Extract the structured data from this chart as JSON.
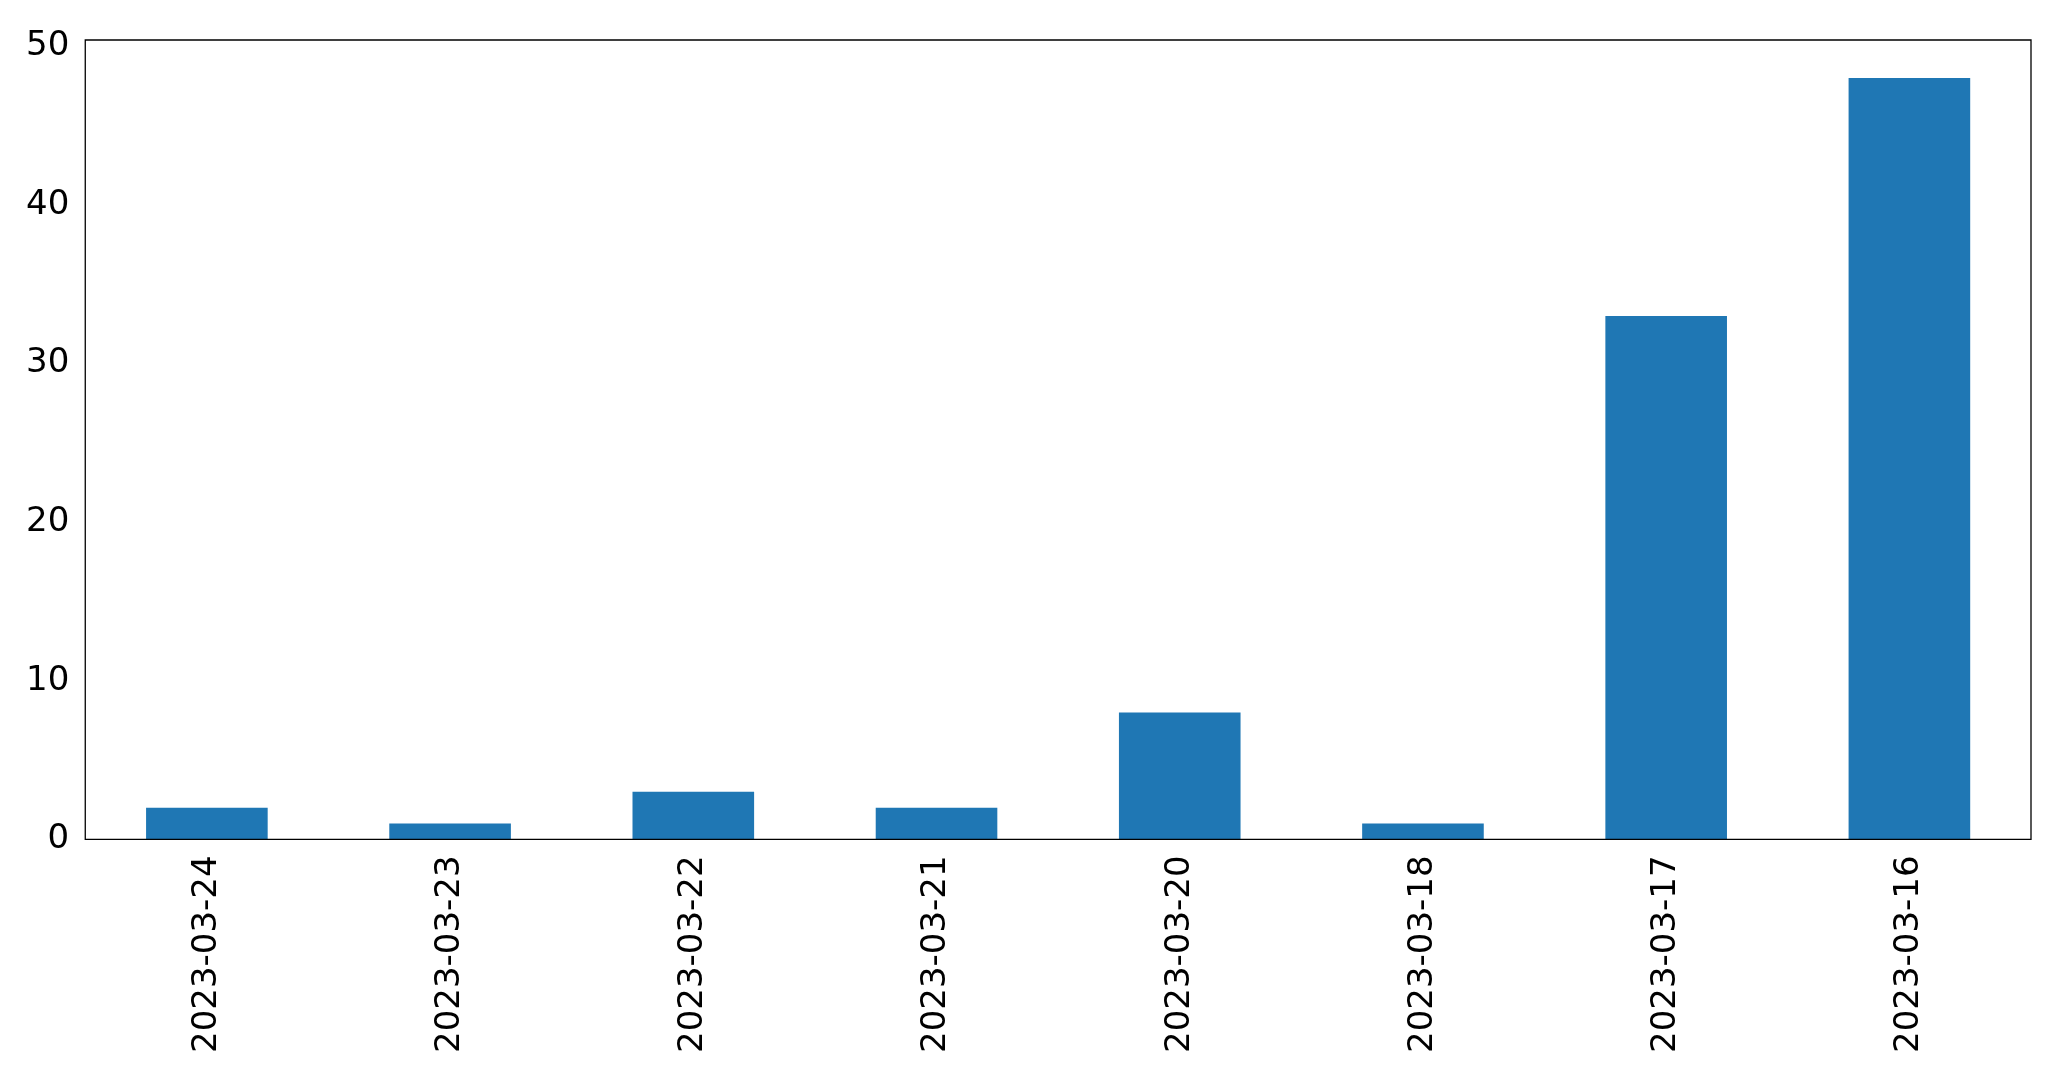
{
  "chart_data": {
    "type": "bar",
    "categories": [
      "2023-03-24",
      "2023-03-23",
      "2023-03-22",
      "2023-03-21",
      "2023-03-20",
      "2023-03-18",
      "2023-03-17",
      "2023-03-16"
    ],
    "values": [
      2,
      1,
      3,
      2,
      8,
      1,
      33,
      48
    ],
    "color": "#1f77b4",
    "ylim": [
      0,
      50.4
    ],
    "yticks": [
      0,
      10,
      20,
      30,
      40,
      50
    ],
    "grid": false,
    "legend": false
  }
}
